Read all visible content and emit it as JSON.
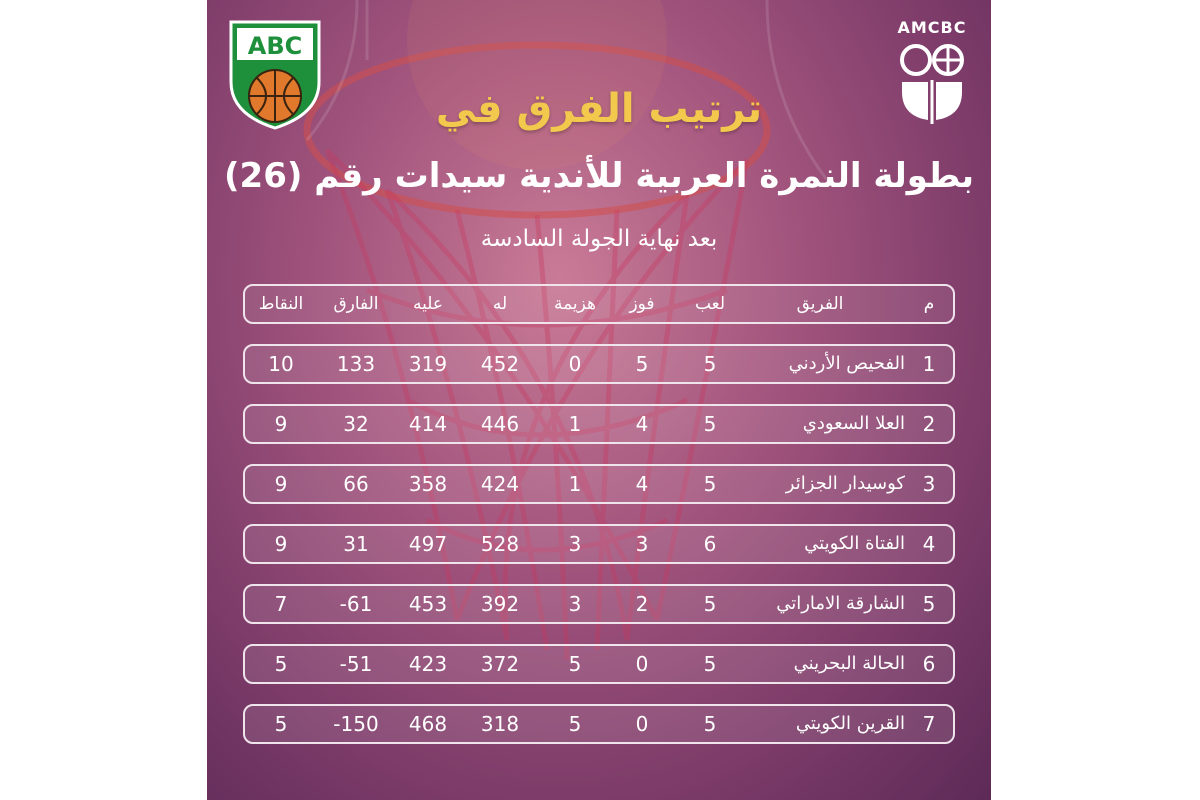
{
  "header": {
    "title_line1": "ترتيب الفرق في",
    "title_line2": "بطولة النمرة العربية للأندية سيدات رقم (26)",
    "subtitle": "بعد نهاية الجولة السادسة"
  },
  "logos": {
    "left_text": "ABC",
    "right_text": "AMCBC"
  },
  "colors": {
    "title_accent": "#f2c94c",
    "background": "#a5577f",
    "logo_green": "#1e8f3a",
    "logo_orange": "#e0792b"
  },
  "table": {
    "columns": {
      "rank": "م",
      "team": "الفريق",
      "played": "لعب",
      "won": "فوز",
      "lost": "هزيمة",
      "for": "له",
      "against": "عليه",
      "diff": "الفارق",
      "points": "النقاط"
    },
    "rows": [
      {
        "rank": "1",
        "team": "الفحيص الأردني",
        "played": "5",
        "won": "5",
        "lost": "0",
        "for": "452",
        "against": "319",
        "diff": "133",
        "points": "10"
      },
      {
        "rank": "2",
        "team": "العلا السعودي",
        "played": "5",
        "won": "4",
        "lost": "1",
        "for": "446",
        "against": "414",
        "diff": "32",
        "points": "9"
      },
      {
        "rank": "3",
        "team": "كوسيدار الجزائر",
        "played": "5",
        "won": "4",
        "lost": "1",
        "for": "424",
        "against": "358",
        "diff": "66",
        "points": "9"
      },
      {
        "rank": "4",
        "team": "الفتاة الكويتي",
        "played": "6",
        "won": "3",
        "lost": "3",
        "for": "528",
        "against": "497",
        "diff": "31",
        "points": "9"
      },
      {
        "rank": "5",
        "team": "الشارقة الاماراتي",
        "played": "5",
        "won": "2",
        "lost": "3",
        "for": "392",
        "against": "453",
        "diff": "-61",
        "points": "7"
      },
      {
        "rank": "6",
        "team": "الحالة البحريني",
        "played": "5",
        "won": "0",
        "lost": "5",
        "for": "372",
        "against": "423",
        "diff": "-51",
        "points": "5"
      },
      {
        "rank": "7",
        "team": "القرين الكويتي",
        "played": "5",
        "won": "0",
        "lost": "5",
        "for": "318",
        "against": "468",
        "diff": "-150",
        "points": "5"
      }
    ]
  }
}
